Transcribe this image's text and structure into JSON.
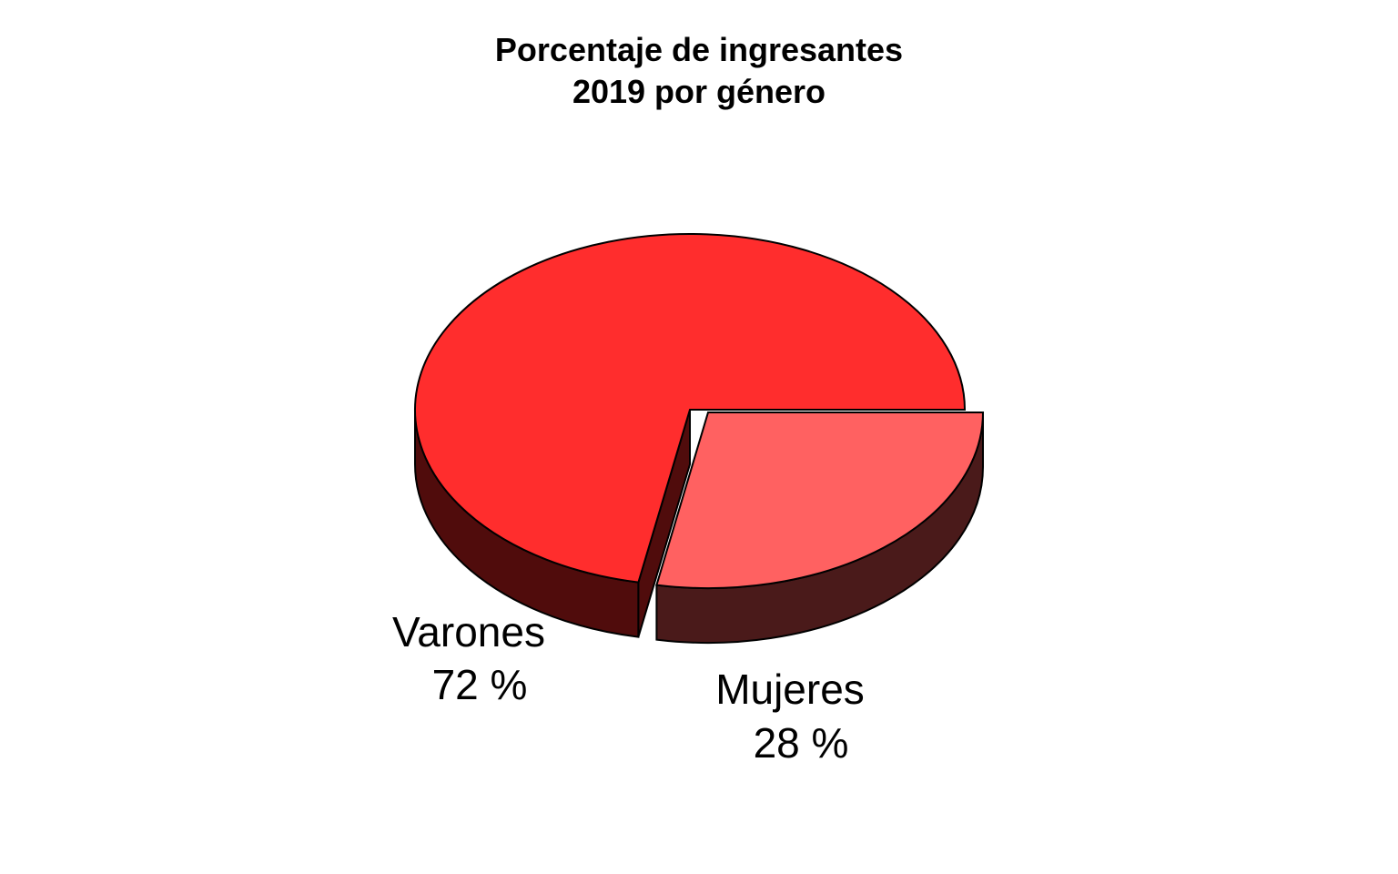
{
  "chart_data": {
    "type": "pie",
    "title_lines": [
      "Porcentaje de ingresantes",
      "2019 por género"
    ],
    "slices": [
      {
        "name": "Varones",
        "value": 72,
        "label_value": "72 %",
        "color_top": "#ff2d2d",
        "color_side": "#500c0c"
      },
      {
        "name": "Mujeres",
        "value": 28,
        "label_value": "28 %",
        "color_top": "#ff6161",
        "color_side": "#4a1a1a"
      }
    ],
    "exploded": "Mujeres",
    "style": "3d",
    "legend": "none"
  }
}
